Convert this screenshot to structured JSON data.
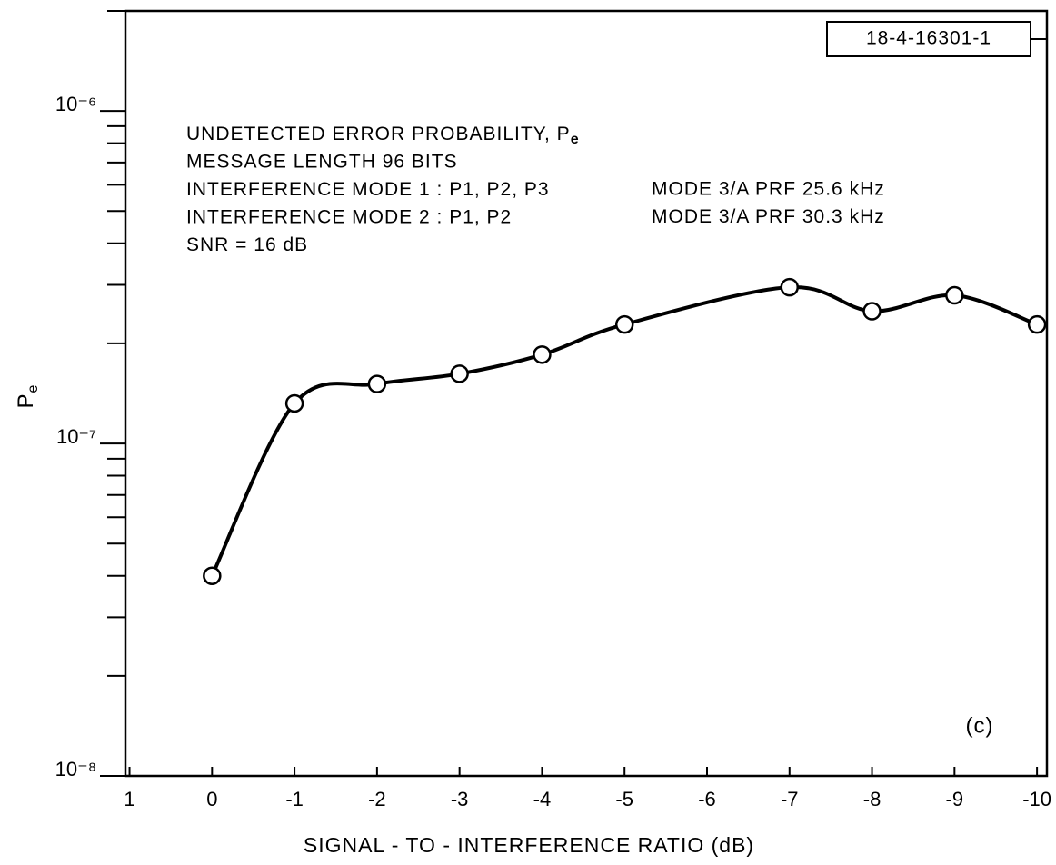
{
  "chart_data": {
    "type": "line",
    "id_label": "18-4-16301-1",
    "annotations": [
      {
        "text": "UNDETECTED ERROR PROBABILITY, P",
        "sub": "e"
      },
      {
        "text": "MESSAGE LENGTH 96 BITS"
      },
      {
        "text": "INTERFERENCE MODE 1 : P1, P2, P3",
        "right": "MODE 3/A PRF 25.6 kHz"
      },
      {
        "text": "INTERFERENCE MODE 2 : P1, P2",
        "right": "MODE 3/A PRF 30.3 kHz"
      },
      {
        "text": "SNR = 16 dB"
      }
    ],
    "panel_label": "(c)",
    "xlabel": "SIGNAL - TO - INTERFERENCE RATIO (dB)",
    "ylabel": "P",
    "ylabel_sub": "e",
    "log_y": true,
    "xlim": [
      1.05,
      -10.12
    ],
    "xticks": [
      1,
      0,
      -1,
      -2,
      -3,
      -4,
      -5,
      -6,
      -7,
      -8,
      -9,
      -10
    ],
    "ylim": [
      1e-08,
      2e-06
    ],
    "yticks": [
      {
        "value": 1e-06,
        "label": "10⁻⁶"
      },
      {
        "value": 1e-07,
        "label": "10⁻⁷"
      },
      {
        "value": 1e-08,
        "label": "10⁻⁸"
      }
    ],
    "yminorticks": [
      2e-08,
      3e-08,
      4e-08,
      5e-08,
      6e-08,
      7e-08,
      8e-08,
      9e-08,
      2e-07,
      3e-07,
      4e-07,
      5e-07,
      6e-07,
      7e-07,
      8e-07,
      9e-07,
      2e-06
    ],
    "series": [
      {
        "color": "#000000",
        "x": [
          0,
          -1,
          -2,
          -3,
          -4,
          -5,
          -7,
          -8,
          -9,
          -10
        ],
        "values": [
          4e-08,
          1.32e-07,
          1.51e-07,
          1.62e-07,
          1.85e-07,
          2.28e-07,
          2.95e-07,
          2.5e-07,
          2.79e-07,
          2.28e-07
        ]
      }
    ]
  }
}
